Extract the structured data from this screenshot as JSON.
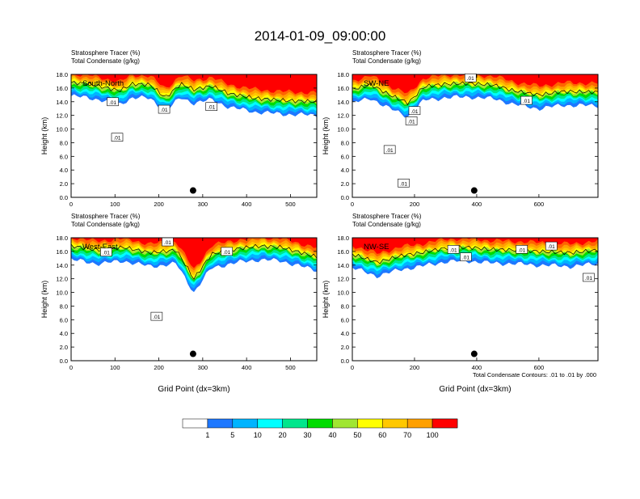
{
  "title": "2014-01-09_09:00:00",
  "chart_data": [
    {
      "type": "heatmap",
      "panel_label": "South-North",
      "header_lines": [
        "Stratosphere Tracer   (%)",
        "Total Condensate   (g/kg)"
      ],
      "xlim": [
        0,
        560
      ],
      "ylim": [
        0,
        18
      ],
      "x_ticks": [
        "0",
        "100",
        "200",
        "300",
        "400",
        "500"
      ],
      "y_ticks": [
        "0.0",
        "2.0",
        "4.0",
        "6.0",
        "8.0",
        "10.0",
        "12.0",
        "14.0",
        "16.0",
        "18.0"
      ],
      "ylabel": "Height (km)",
      "xlabel": "",
      "contour_labels": [
        {
          "text": ".01",
          "x": 95,
          "y": 14.0
        },
        {
          "text": ".01",
          "x": 105,
          "y": 8.8
        },
        {
          "text": ".01",
          "x": 212,
          "y": 12.9
        },
        {
          "text": ".01",
          "x": 320,
          "y": 13.3
        }
      ],
      "marker": {
        "x": 278,
        "y": 1.0
      },
      "tracer_top_profile": [
        [
          0,
          14.8
        ],
        [
          40,
          14.6
        ],
        [
          70,
          14.2
        ],
        [
          110,
          13.6
        ],
        [
          140,
          14.6
        ],
        [
          180,
          14.5
        ],
        [
          215,
          12.6
        ],
        [
          250,
          14.6
        ],
        [
          280,
          13.8
        ],
        [
          320,
          14.3
        ],
        [
          360,
          13.2
        ],
        [
          420,
          12.5
        ],
        [
          480,
          12.2
        ],
        [
          560,
          12.0
        ]
      ]
    },
    {
      "type": "heatmap",
      "panel_label": "SW-NE",
      "header_lines": [
        "Stratosphere Tracer   (%)",
        "Total Condensate   (g/kg)"
      ],
      "xlim": [
        0,
        790
      ],
      "ylim": [
        0,
        18
      ],
      "x_ticks": [
        "0",
        "200",
        "400",
        "600"
      ],
      "y_ticks": [
        "0.0",
        "2.0",
        "4.0",
        "6.0",
        "8.0",
        "10.0",
        "12.0",
        "14.0",
        "16.0",
        "18.0"
      ],
      "ylabel": "Height (km)",
      "xlabel": "",
      "contour_labels": [
        {
          "text": ".01",
          "x": 380,
          "y": 17.5
        },
        {
          "text": ".01",
          "x": 200,
          "y": 12.7
        },
        {
          "text": ".01",
          "x": 190,
          "y": 11.2
        },
        {
          "text": ".01",
          "x": 120,
          "y": 7.0
        },
        {
          "text": ".01",
          "x": 165,
          "y": 2.1
        },
        {
          "text": ".01",
          "x": 560,
          "y": 14.2
        }
      ],
      "marker": {
        "x": 392,
        "y": 1.0
      },
      "tracer_top_profile": [
        [
          0,
          13.8
        ],
        [
          60,
          14.5
        ],
        [
          120,
          13.0
        ],
        [
          180,
          11.8
        ],
        [
          230,
          14.2
        ],
        [
          300,
          14.6
        ],
        [
          380,
          14.7
        ],
        [
          460,
          14.4
        ],
        [
          520,
          13.6
        ],
        [
          600,
          13.0
        ],
        [
          680,
          13.5
        ],
        [
          790,
          13.4
        ]
      ]
    },
    {
      "type": "heatmap",
      "panel_label": "West-East",
      "header_lines": [
        "Stratosphere Tracer   (%)",
        "Total Condensate   (g/kg)"
      ],
      "xlim": [
        0,
        560
      ],
      "ylim": [
        0,
        18
      ],
      "x_ticks": [
        "0",
        "100",
        "200",
        "300",
        "400",
        "500"
      ],
      "y_ticks": [
        "0.0",
        "2.0",
        "4.0",
        "6.0",
        "8.0",
        "10.0",
        "12.0",
        "14.0",
        "16.0",
        "18.0"
      ],
      "ylabel": "Height (km)",
      "xlabel": "Grid Point (dx=3km)",
      "contour_labels": [
        {
          "text": ".01",
          "x": 220,
          "y": 17.4
        },
        {
          "text": ".01",
          "x": 80,
          "y": 15.9
        },
        {
          "text": ".01",
          "x": 355,
          "y": 16.0
        },
        {
          "text": ".01",
          "x": 195,
          "y": 6.5
        }
      ],
      "marker": {
        "x": 278,
        "y": 1.0
      },
      "tracer_top_profile": [
        [
          0,
          14.8
        ],
        [
          60,
          14.2
        ],
        [
          120,
          14.6
        ],
        [
          180,
          13.8
        ],
        [
          240,
          14.2
        ],
        [
          280,
          10.0
        ],
        [
          320,
          13.6
        ],
        [
          380,
          14.4
        ],
        [
          430,
          14.8
        ],
        [
          480,
          14.6
        ],
        [
          560,
          13.2
        ]
      ]
    },
    {
      "type": "heatmap",
      "panel_label": "NW-SE",
      "header_lines": [
        "Stratosphere Tracer   (%)",
        "Total Condensate   (g/kg)"
      ],
      "xlim": [
        0,
        790
      ],
      "ylim": [
        0,
        18
      ],
      "x_ticks": [
        "0",
        "200",
        "400",
        "600"
      ],
      "y_ticks": [
        "0.0",
        "2.0",
        "4.0",
        "6.0",
        "8.0",
        "10.0",
        "12.0",
        "14.0",
        "16.0",
        "18.0"
      ],
      "ylabel": "Height (km)",
      "xlabel": "Grid Point (dx=3km)",
      "contour_labels": [
        {
          "text": ".01",
          "x": 325,
          "y": 16.3
        },
        {
          "text": ".01",
          "x": 365,
          "y": 15.2
        },
        {
          "text": ".01",
          "x": 545,
          "y": 16.3
        },
        {
          "text": ".01",
          "x": 640,
          "y": 16.8
        },
        {
          "text": ".01",
          "x": 760,
          "y": 12.2
        }
      ],
      "marker": {
        "x": 392,
        "y": 1.0
      },
      "tracer_top_profile": [
        [
          0,
          13.6
        ],
        [
          80,
          12.4
        ],
        [
          160,
          13.4
        ],
        [
          220,
          13.8
        ],
        [
          300,
          14.5
        ],
        [
          380,
          14.6
        ],
        [
          440,
          14.3
        ],
        [
          520,
          14.2
        ],
        [
          600,
          14.0
        ],
        [
          700,
          13.8
        ],
        [
          790,
          14.2
        ]
      ]
    }
  ],
  "contour_note": "Total Condensate Contours: .01 to .01 by .000",
  "colorbar": {
    "labels": [
      "1",
      "5",
      "10",
      "20",
      "30",
      "40",
      "50",
      "60",
      "70",
      "100"
    ],
    "colors": [
      "#ffffff",
      "#1e78ff",
      "#00b4ff",
      "#00ffff",
      "#00e68c",
      "#00dc00",
      "#a0e632",
      "#ffff00",
      "#ffc800",
      "#ffa000",
      "#ff6400",
      "#ff0000"
    ]
  }
}
